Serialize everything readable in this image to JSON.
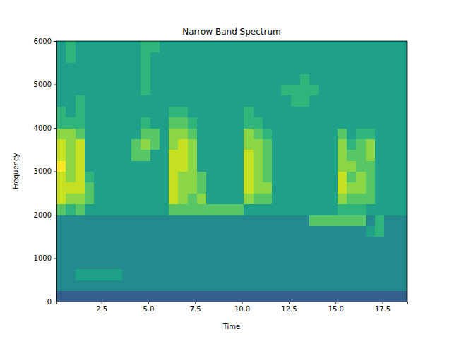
{
  "chart_data": {
    "type": "heatmap",
    "title": "Narrow Band Spectrum",
    "x_label": "Time",
    "y_label": "Frequency",
    "xlim": [
      0.1,
      18.8
    ],
    "ylim": [
      0,
      6000
    ],
    "xticks": [
      2.5,
      {
        "value": 5,
        "label": "5.0"
      },
      7.5,
      {
        "value": 10,
        "label": "10.0"
      },
      12.5,
      {
        "value": 15,
        "label": "15.0"
      },
      17.5
    ],
    "yticks": [
      0,
      1000,
      2000,
      3000,
      4000,
      5000,
      6000
    ],
    "x_bins": [
      0.1,
      0.6,
      1.1,
      1.6,
      2.1,
      2.6,
      3.1,
      3.6,
      4.1,
      4.6,
      5.1,
      5.6,
      6.1,
      6.6,
      7.1,
      7.6,
      8.1,
      8.6,
      9.1,
      9.6,
      10.1,
      10.6,
      11.1,
      11.6,
      12.1,
      12.6,
      13.1,
      13.6,
      14.1,
      14.6,
      15.1,
      15.6,
      16.1,
      16.6,
      17.1,
      17.6,
      18.1,
      18.6,
      18.8
    ],
    "y_bins": [
      0,
      250,
      500,
      750,
      1000,
      1250,
      1500,
      1750,
      2000,
      2250,
      2500,
      2750,
      3000,
      3250,
      3500,
      3750,
      4000,
      4250,
      4500,
      4750,
      5000,
      5250,
      5500,
      5750,
      6000
    ],
    "cells": [
      [
        1,
        1,
        1,
        1,
        1,
        1,
        1,
        1,
        1,
        1,
        1,
        1,
        1,
        1,
        1,
        1,
        1,
        1,
        1,
        1,
        1,
        1,
        1,
        1,
        1,
        1,
        1,
        1,
        1,
        1,
        1,
        1,
        1,
        1,
        1,
        1,
        1,
        1
      ],
      [
        3,
        3,
        3,
        3,
        3,
        3,
        3,
        3,
        3,
        3,
        3,
        3,
        3,
        3,
        3,
        3,
        3,
        3,
        3,
        3,
        3,
        3,
        3,
        3,
        3,
        3,
        3,
        3,
        3,
        3,
        3,
        3,
        3,
        3,
        3,
        3,
        3,
        3
      ],
      [
        3,
        3,
        4,
        4,
        4,
        4,
        4,
        3,
        3,
        3,
        3,
        3,
        3,
        3,
        3,
        3,
        3,
        3,
        3,
        3,
        3,
        3,
        3,
        3,
        3,
        3,
        3,
        3,
        3,
        3,
        3,
        3,
        3,
        3,
        3,
        3,
        3,
        3
      ],
      [
        3,
        3,
        3,
        3,
        3,
        3,
        3,
        3,
        3,
        3,
        3,
        3,
        3,
        3,
        3,
        3,
        3,
        3,
        3,
        3,
        3,
        3,
        3,
        3,
        3,
        3,
        3,
        3,
        3,
        3,
        3,
        3,
        3,
        3,
        3,
        3,
        3,
        3
      ],
      [
        3,
        3,
        3,
        3,
        3,
        3,
        3,
        3,
        3,
        3,
        3,
        3,
        3,
        3,
        3,
        3,
        3,
        3,
        3,
        3,
        3,
        3,
        3,
        3,
        3,
        3,
        3,
        3,
        3,
        3,
        3,
        3,
        3,
        3,
        3,
        3,
        3,
        3
      ],
      [
        3,
        3,
        3,
        3,
        3,
        3,
        3,
        3,
        3,
        3,
        3,
        3,
        3,
        3,
        3,
        3,
        3,
        3,
        3,
        3,
        3,
        3,
        3,
        3,
        3,
        3,
        3,
        3,
        3,
        3,
        3,
        3,
        3,
        3,
        3,
        3,
        3,
        3
      ],
      [
        3,
        3,
        3,
        3,
        3,
        3,
        3,
        3,
        3,
        3,
        3,
        3,
        3,
        3,
        3,
        3,
        3,
        3,
        3,
        3,
        3,
        3,
        3,
        3,
        3,
        3,
        3,
        3,
        3,
        3,
        3,
        3,
        3,
        4,
        5,
        3,
        3,
        3
      ],
      [
        3,
        3,
        3,
        3,
        3,
        3,
        3,
        3,
        3,
        3,
        3,
        3,
        3,
        3,
        3,
        3,
        3,
        3,
        3,
        3,
        3,
        3,
        3,
        3,
        3,
        3,
        3,
        6,
        6,
        6,
        6,
        6,
        6,
        3,
        5,
        3,
        3,
        3
      ],
      [
        6,
        5,
        6,
        4,
        4,
        4,
        4,
        4,
        4,
        4,
        4,
        4,
        6,
        6,
        6,
        6,
        6,
        6,
        6,
        6,
        4,
        4,
        4,
        4,
        4,
        4,
        4,
        4,
        4,
        4,
        5,
        5,
        5,
        4,
        4,
        4,
        4,
        4
      ],
      [
        8,
        7,
        7,
        6,
        4,
        4,
        4,
        4,
        4,
        4,
        4,
        4,
        8,
        7,
        6,
        7,
        4,
        4,
        4,
        4,
        7,
        6,
        6,
        4,
        4,
        4,
        4,
        4,
        4,
        4,
        7,
        6,
        6,
        6,
        4,
        4,
        4,
        4
      ],
      [
        8,
        8,
        8,
        6,
        4,
        4,
        4,
        4,
        4,
        4,
        4,
        4,
        8,
        7,
        7,
        6,
        4,
        4,
        4,
        4,
        8,
        7,
        7,
        4,
        4,
        4,
        4,
        4,
        4,
        4,
        8,
        7,
        7,
        6,
        4,
        4,
        4,
        4
      ],
      [
        8,
        7,
        8,
        5,
        4,
        4,
        4,
        4,
        4,
        4,
        4,
        4,
        8,
        7,
        7,
        6,
        4,
        4,
        4,
        4,
        8,
        7,
        6,
        4,
        4,
        4,
        4,
        4,
        4,
        4,
        8,
        6,
        7,
        6,
        4,
        4,
        4,
        4
      ],
      [
        9,
        7,
        8,
        4,
        4,
        4,
        4,
        4,
        4,
        4,
        4,
        4,
        8,
        8,
        7,
        4,
        4,
        4,
        4,
        4,
        8,
        7,
        6,
        4,
        4,
        4,
        4,
        4,
        4,
        4,
        7,
        7,
        6,
        6,
        4,
        4,
        4,
        4
      ],
      [
        8,
        7,
        8,
        4,
        4,
        4,
        4,
        4,
        6,
        6,
        4,
        4,
        8,
        8,
        7,
        4,
        4,
        4,
        4,
        4,
        8,
        7,
        6,
        4,
        4,
        4,
        4,
        4,
        4,
        4,
        7,
        6,
        6,
        7,
        4,
        4,
        4,
        4
      ],
      [
        8,
        7,
        8,
        4,
        4,
        4,
        4,
        4,
        6,
        7,
        6,
        4,
        7,
        8,
        7,
        4,
        4,
        4,
        4,
        4,
        7,
        7,
        6,
        4,
        4,
        4,
        4,
        4,
        4,
        4,
        7,
        5,
        6,
        7,
        4,
        4,
        4,
        4
      ],
      [
        7,
        7,
        6,
        4,
        4,
        4,
        4,
        4,
        4,
        6,
        6,
        4,
        7,
        7,
        6,
        4,
        4,
        4,
        4,
        4,
        7,
        6,
        5,
        4,
        4,
        4,
        4,
        4,
        4,
        4,
        6,
        4,
        5,
        5,
        4,
        4,
        4,
        4
      ],
      [
        5,
        5,
        5,
        4,
        4,
        4,
        4,
        4,
        4,
        5,
        4,
        4,
        6,
        6,
        5,
        4,
        4,
        4,
        4,
        4,
        5,
        5,
        4,
        4,
        4,
        4,
        4,
        4,
        4,
        4,
        4,
        4,
        4,
        4,
        4,
        4,
        4,
        4
      ],
      [
        5,
        4,
        5,
        4,
        4,
        4,
        4,
        4,
        4,
        4,
        4,
        4,
        5,
        5,
        4,
        4,
        4,
        4,
        4,
        4,
        5,
        4,
        4,
        4,
        4,
        4,
        4,
        4,
        4,
        4,
        4,
        4,
        4,
        4,
        4,
        4,
        4,
        4
      ],
      [
        4,
        4,
        5,
        4,
        4,
        4,
        4,
        4,
        4,
        4,
        4,
        4,
        4,
        4,
        4,
        4,
        4,
        4,
        4,
        4,
        4,
        4,
        4,
        4,
        4,
        5,
        5,
        4,
        4,
        4,
        4,
        4,
        4,
        4,
        4,
        4,
        4,
        4
      ],
      [
        4,
        4,
        4,
        4,
        4,
        4,
        4,
        4,
        4,
        5,
        4,
        4,
        4,
        4,
        4,
        4,
        4,
        4,
        4,
        4,
        4,
        4,
        4,
        4,
        5,
        5,
        5,
        5,
        4,
        4,
        4,
        4,
        4,
        4,
        4,
        4,
        4,
        4
      ],
      [
        4,
        4,
        4,
        4,
        4,
        4,
        4,
        4,
        4,
        5,
        4,
        4,
        4,
        4,
        4,
        4,
        4,
        4,
        4,
        4,
        4,
        4,
        4,
        4,
        4,
        4,
        5,
        4,
        4,
        4,
        4,
        4,
        4,
        4,
        4,
        4,
        4,
        4
      ],
      [
        4,
        4,
        4,
        4,
        4,
        4,
        4,
        4,
        4,
        5,
        4,
        4,
        4,
        4,
        4,
        4,
        4,
        4,
        4,
        4,
        4,
        4,
        4,
        4,
        4,
        4,
        4,
        4,
        4,
        4,
        4,
        4,
        4,
        4,
        4,
        4,
        4,
        4
      ],
      [
        4,
        5,
        4,
        4,
        4,
        4,
        4,
        4,
        4,
        5,
        4,
        4,
        4,
        4,
        4,
        4,
        4,
        4,
        4,
        4,
        4,
        4,
        4,
        4,
        4,
        4,
        4,
        4,
        4,
        4,
        4,
        4,
        4,
        4,
        4,
        4,
        4,
        4
      ],
      [
        4,
        5,
        4,
        4,
        4,
        4,
        4,
        4,
        4,
        5,
        5,
        4,
        4,
        4,
        4,
        4,
        4,
        4,
        4,
        4,
        4,
        4,
        4,
        4,
        4,
        4,
        4,
        4,
        4,
        4,
        4,
        4,
        4,
        4,
        4,
        4,
        4,
        4
      ]
    ]
  }
}
